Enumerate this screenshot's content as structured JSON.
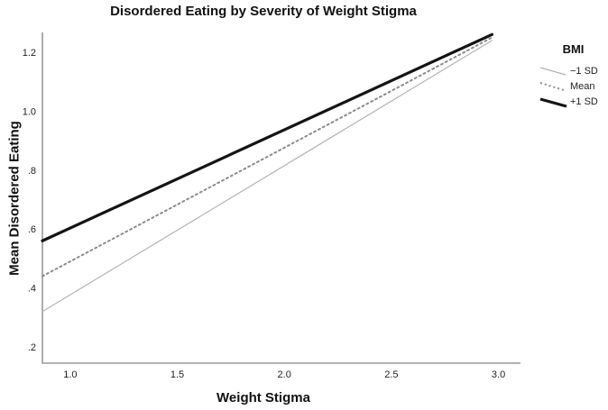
{
  "title": "Disordered Eating by Severity of Weight Stigma",
  "colors": {
    "background": "#ffffff",
    "axis": "#999999",
    "tick_text": "#1f1f1f",
    "title_text": "#111111"
  },
  "chart_data": {
    "type": "line",
    "title": "Disordered Eating by Severity of Weight Stigma",
    "xlabel": "Weight Stigma",
    "ylabel": "Mean Disordered Eating",
    "xlim": [
      0.87,
      3.103
    ],
    "ylim": [
      0.145,
      1.267
    ],
    "grid": false,
    "x_ticks": {
      "values": [
        1.0,
        1.5,
        2.0,
        2.5,
        3.0
      ],
      "labels": [
        "1.0",
        "1.5",
        "2.0",
        "2.5",
        "3.0"
      ]
    },
    "y_ticks": {
      "values": [
        0.2,
        0.4,
        0.6,
        0.8,
        1.0,
        1.2
      ],
      "labels": [
        ".2",
        ".4",
        ".6",
        ".8",
        "1.0",
        "1.2"
      ]
    },
    "legend": {
      "title": "BMI",
      "position": "right-top"
    },
    "series": [
      {
        "name": "−1 SD",
        "x": [
          0.87,
          2.97
        ],
        "y": [
          0.32,
          1.24
        ],
        "color": "#b3b3b3",
        "width": 1.2,
        "style": "solid"
      },
      {
        "name": "Mean",
        "x": [
          0.87,
          2.97
        ],
        "y": [
          0.44,
          1.25
        ],
        "color": "#8c8c8c",
        "width": 2,
        "style": "dotted"
      },
      {
        "name": "+1 SD",
        "x": [
          0.87,
          2.97
        ],
        "y": [
          0.56,
          1.26
        ],
        "color": "#141414",
        "width": 3.2,
        "style": "solid"
      }
    ]
  }
}
